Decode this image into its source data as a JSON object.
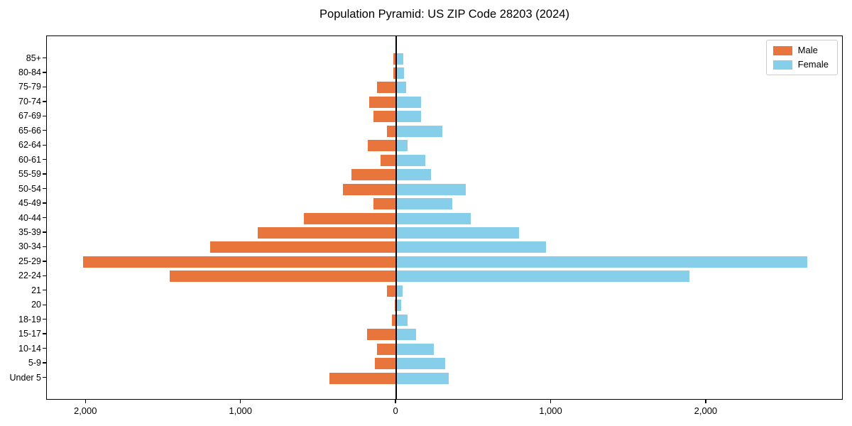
{
  "title": "Population Pyramid: US ZIP Code 28203 (2024)",
  "legend": {
    "male_label": "Male",
    "female_label": "Female",
    "position": "upper right"
  },
  "colors": {
    "male": "#e8763c",
    "female": "#87ceeb",
    "axis": "#000000",
    "legend_border": "#cccccc",
    "background": "#ffffff"
  },
  "chart_data": {
    "type": "bar",
    "subtype": "population-pyramid",
    "orientation": "horizontal",
    "title": "Population Pyramid: US ZIP Code 28203 (2024)",
    "xlabel": "",
    "ylabel": "",
    "grid": false,
    "legend_position": "upper right",
    "categories_top_to_bottom": [
      "85+",
      "80-84",
      "75-79",
      "70-74",
      "67-69",
      "65-66",
      "62-64",
      "60-61",
      "55-59",
      "50-54",
      "45-49",
      "40-44",
      "35-39",
      "30-34",
      "25-29",
      "22-24",
      "21",
      "20",
      "18-19",
      "15-17",
      "10-14",
      "5-9",
      "Under 5"
    ],
    "series": [
      {
        "name": "Male",
        "side": "left",
        "values": [
          20,
          18,
          125,
          175,
          145,
          62,
          185,
          102,
          290,
          345,
          145,
          595,
          895,
          1200,
          2020,
          1460,
          58,
          8,
          28,
          188,
          125,
          136,
          430
        ]
      },
      {
        "name": "Female",
        "side": "right",
        "values": [
          46,
          48,
          63,
          158,
          162,
          295,
          75,
          188,
          226,
          450,
          362,
          480,
          790,
          965,
          2650,
          1890,
          42,
          30,
          75,
          128,
          244,
          316,
          338
        ]
      }
    ],
    "xlim": [
      -2253,
      2884
    ],
    "x_ticks": [
      {
        "value": -2000,
        "label": "2,000"
      },
      {
        "value": -1000,
        "label": "1,000"
      },
      {
        "value": 0,
        "label": "0"
      },
      {
        "value": 1000,
        "label": "1,000"
      },
      {
        "value": 2000,
        "label": "2,000"
      }
    ]
  }
}
